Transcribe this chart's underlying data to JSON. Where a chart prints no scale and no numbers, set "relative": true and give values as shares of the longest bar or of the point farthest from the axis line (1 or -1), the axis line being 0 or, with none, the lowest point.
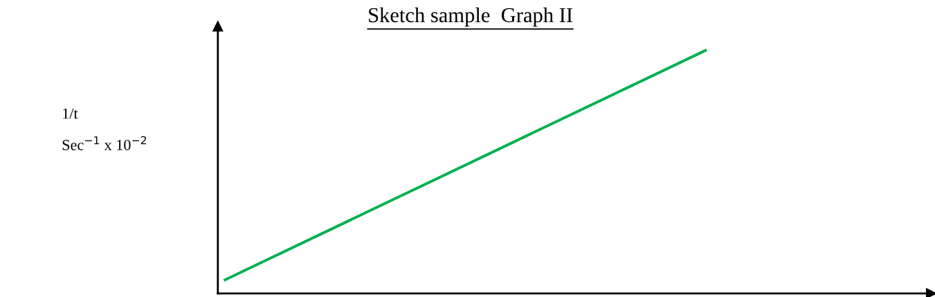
{
  "chart_data": {
    "type": "line",
    "title": "Sketch sample  Graph II",
    "ylabel": "1/t\nSec$^{−1}$ x 10$^{−2}$",
    "categories": [
      null,
      null
    ],
    "relative": true,
    "series": [
      {
        "color": "#00b050",
        "values": [
          0.056,
          1
        ]
      }
    ],
    "grid": false,
    "legend": false,
    "marker": "none",
    "line_style": "solid"
  }
}
